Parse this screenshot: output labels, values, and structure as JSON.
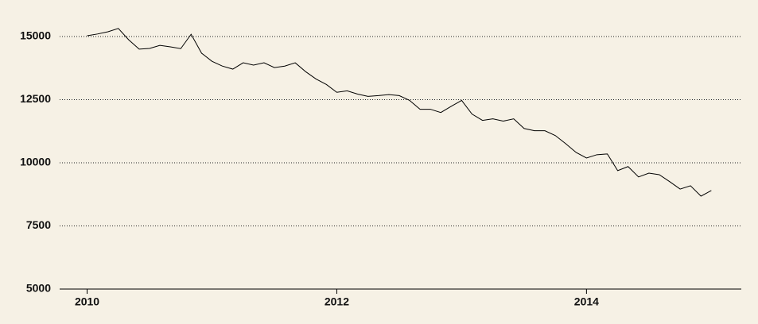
{
  "chart_data": {
    "type": "line",
    "x": [
      2010,
      2010.083,
      2010.167,
      2010.25,
      2010.333,
      2010.417,
      2010.5,
      2010.583,
      2010.667,
      2010.75,
      2010.833,
      2010.917,
      2011,
      2011.083,
      2011.167,
      2011.25,
      2011.333,
      2011.417,
      2011.5,
      2011.583,
      2011.667,
      2011.75,
      2011.833,
      2011.917,
      2012,
      2012.083,
      2012.167,
      2012.25,
      2012.333,
      2012.417,
      2012.5,
      2012.583,
      2012.667,
      2012.75,
      2012.833,
      2012.917,
      2013,
      2013.083,
      2013.167,
      2013.25,
      2013.333,
      2013.417,
      2013.5,
      2013.583,
      2013.667,
      2013.75,
      2013.833,
      2013.917,
      2014,
      2014.083,
      2014.167,
      2014.25,
      2014.333,
      2014.417,
      2014.5,
      2014.583,
      2014.667,
      2014.75,
      2014.833,
      2014.917,
      2015
    ],
    "series": [
      {
        "color": "#000000",
        "values": [
          15030,
          15100,
          15190,
          15320,
          14870,
          14500,
          14530,
          14650,
          14590,
          14520,
          15090,
          14340,
          14020,
          13830,
          13710,
          13960,
          13870,
          13960,
          13770,
          13830,
          13960,
          13610,
          13320,
          13100,
          12790,
          12850,
          12720,
          12630,
          12660,
          12700,
          12660,
          12470,
          12120,
          12120,
          11990,
          12240,
          12470,
          11930,
          11680,
          11740,
          11650,
          11740,
          11360,
          11270,
          11270,
          11080,
          10760,
          10410,
          10190,
          10320,
          10350,
          9690,
          9850,
          9440,
          9590,
          9530,
          9250,
          8960,
          9090,
          8680,
          8900
        ]
      }
    ],
    "xlim": [
      2009.78,
      2015.24
    ],
    "xticks": [
      2010,
      2012,
      2014
    ],
    "ylim": [
      5000,
      15800
    ],
    "yticks": [
      5000,
      7500,
      10000,
      12500,
      15000
    ],
    "grid": true
  }
}
